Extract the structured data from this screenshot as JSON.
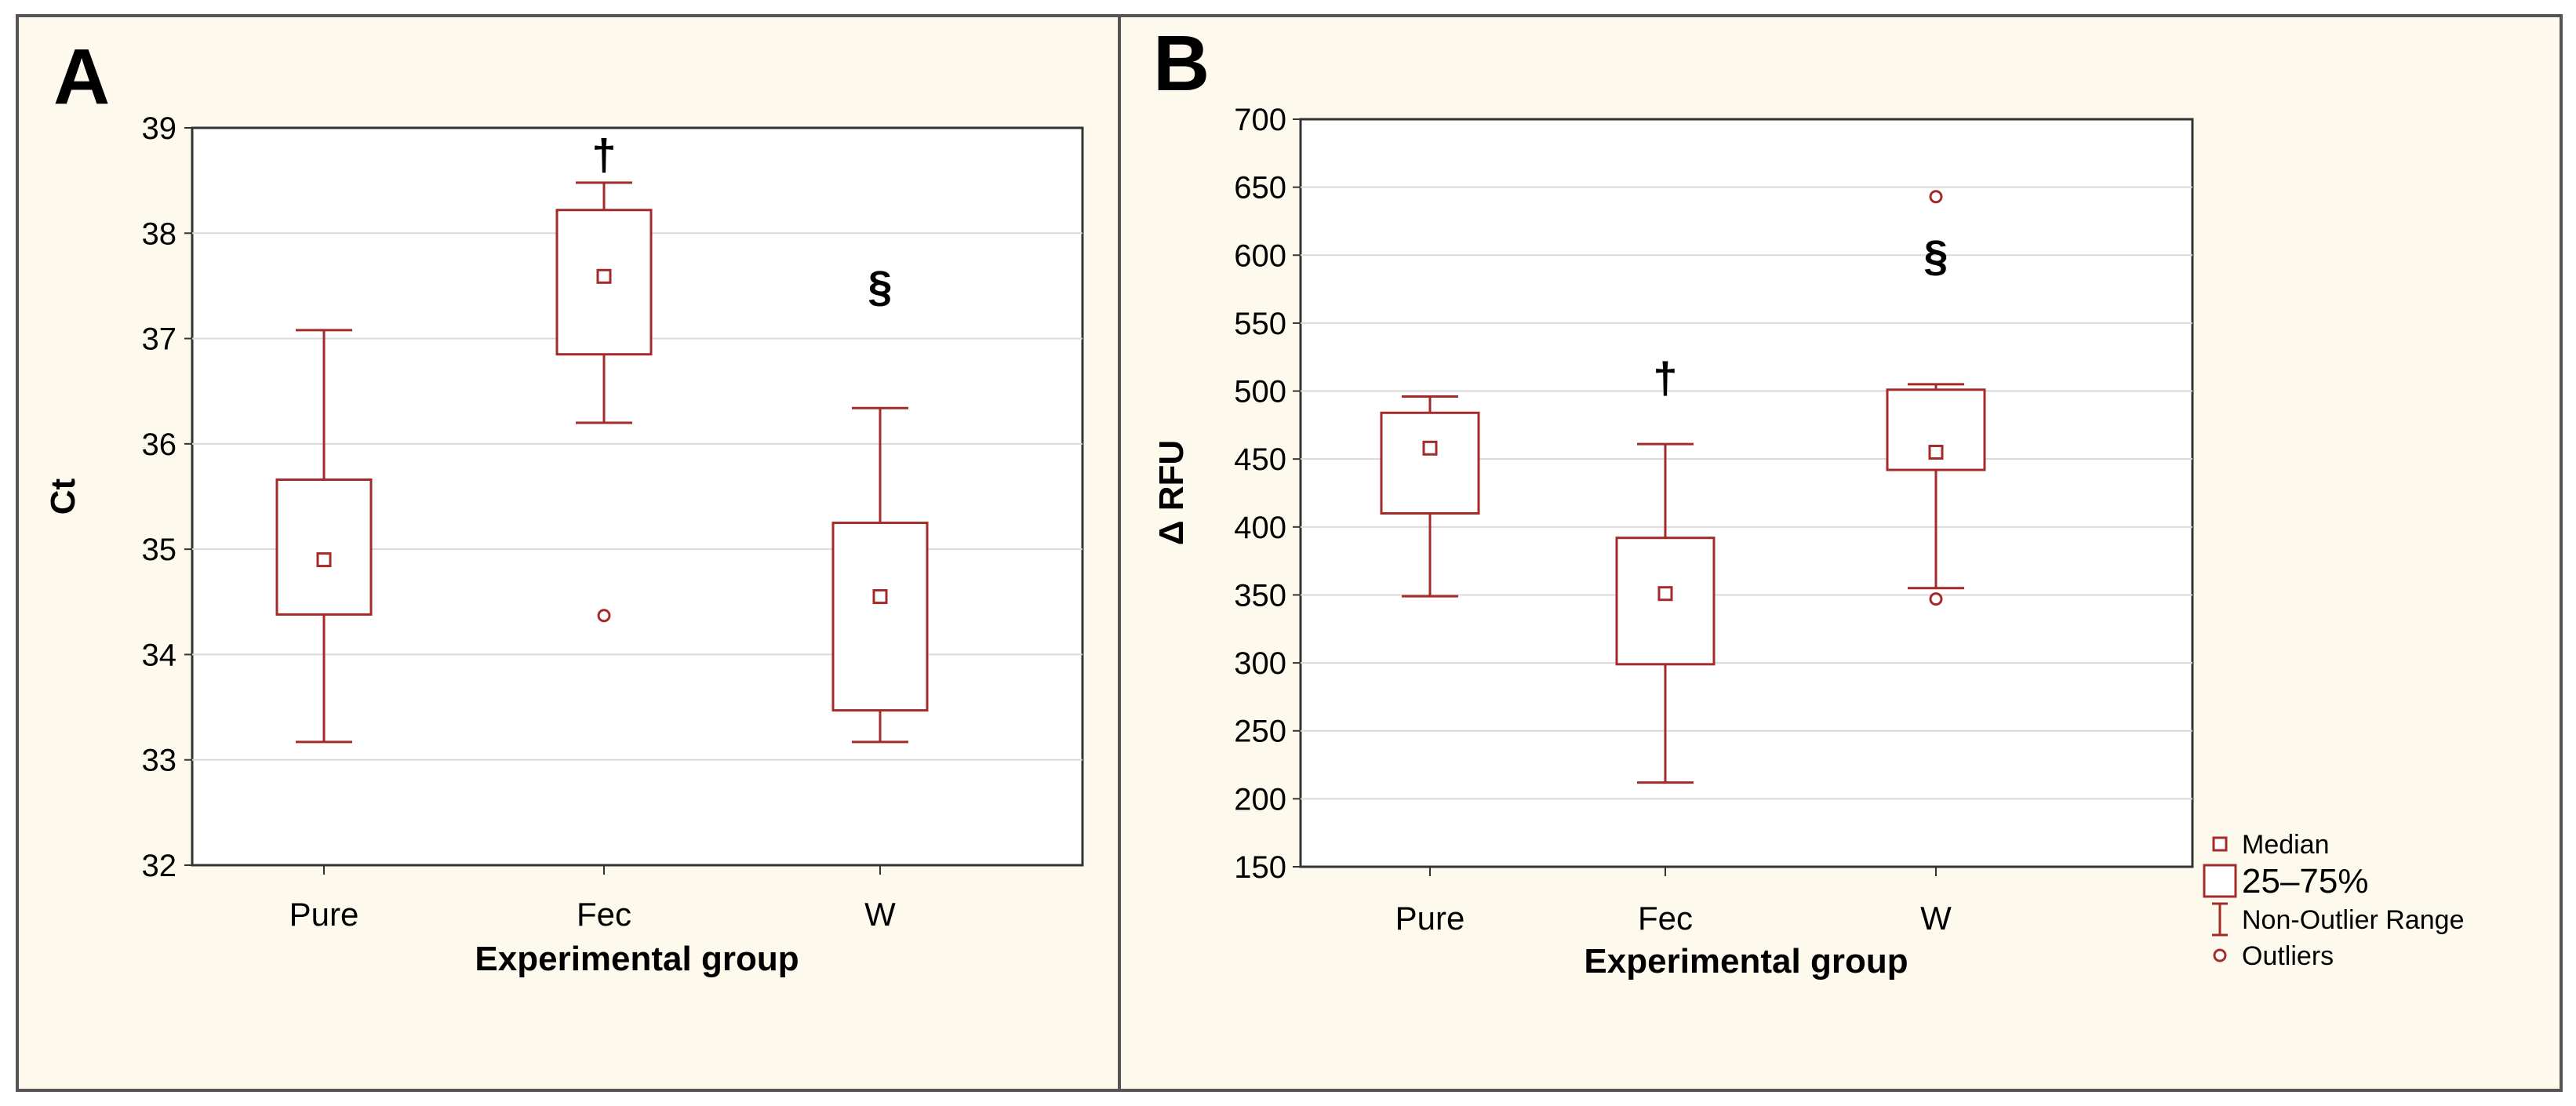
{
  "figure": {
    "background": "#fdf9ec",
    "border_color": "#555555",
    "box_color": "#a52a2a",
    "grid_color": "#d9d9d9"
  },
  "chart_data": [
    {
      "type": "box",
      "panel_label": "A",
      "xlabel": "Experimental group",
      "ylabel": "Ct",
      "ylim": [
        32,
        39
      ],
      "yticks": [
        32,
        33,
        34,
        35,
        36,
        37,
        38,
        39
      ],
      "grid": true,
      "categories": [
        "Pure",
        "Fec",
        "W"
      ],
      "boxes": [
        {
          "category": "Pure",
          "median": 34.9,
          "q1": 34.38,
          "q3": 35.66,
          "whisker_low": 33.17,
          "whisker_high": 37.08,
          "outliers": []
        },
        {
          "category": "Fec",
          "median": 37.59,
          "q1": 36.85,
          "q3": 38.22,
          "whisker_low": 36.2,
          "whisker_high": 38.48,
          "outliers": [
            34.37
          ]
        },
        {
          "category": "W",
          "median": 34.55,
          "q1": 33.47,
          "q3": 35.25,
          "whisker_low": 33.17,
          "whisker_high": 36.34,
          "outliers": []
        }
      ],
      "annotations": [
        {
          "text": "†",
          "x": "Fec",
          "y": 38.75
        },
        {
          "text": "§",
          "x": "W",
          "y": 37.5
        }
      ]
    },
    {
      "type": "box",
      "panel_label": "B",
      "xlabel": "Experimental group",
      "ylabel": "Δ RFU",
      "ylim": [
        150,
        700
      ],
      "yticks": [
        150,
        200,
        250,
        300,
        350,
        400,
        450,
        500,
        550,
        600,
        650,
        700
      ],
      "grid": true,
      "categories": [
        "Pure",
        "Fec",
        "W"
      ],
      "boxes": [
        {
          "category": "Pure",
          "median": 458,
          "q1": 410,
          "q3": 484,
          "whisker_low": 349,
          "whisker_high": 496,
          "outliers": []
        },
        {
          "category": "Fec",
          "median": 351,
          "q1": 299,
          "q3": 392,
          "whisker_low": 212,
          "whisker_high": 461,
          "outliers": []
        },
        {
          "category": "W",
          "median": 455,
          "q1": 442,
          "q3": 501,
          "whisker_low": 355,
          "whisker_high": 505,
          "outliers": [
            643,
            347
          ]
        }
      ],
      "annotations": [
        {
          "text": "†",
          "x": "Fec",
          "y": 510
        },
        {
          "text": "§",
          "x": "W",
          "y": 600
        }
      ],
      "legend": {
        "placement": "bottom-right",
        "entries": [
          {
            "symbol": "median",
            "label": "Median"
          },
          {
            "symbol": "box",
            "label": "25–75%"
          },
          {
            "symbol": "whisker",
            "label": "Non-Outlier Range"
          },
          {
            "symbol": "outlier",
            "label": "Outliers"
          }
        ]
      }
    }
  ]
}
